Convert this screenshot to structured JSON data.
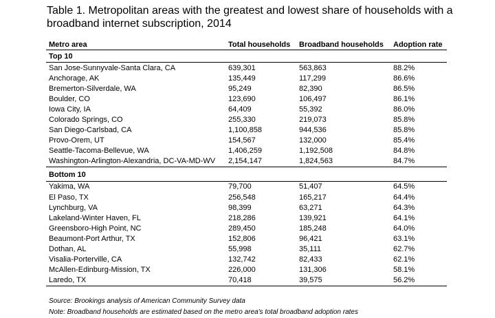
{
  "title": {
    "line1": "Table 1. Metropolitan areas with the greatest and lowest share of households with a",
    "line2": "broadband internet subscription, 2014"
  },
  "columns": [
    "Metro area",
    "Total households",
    "Broadband households",
    "Adoption rate"
  ],
  "groups": [
    {
      "label": "Top 10",
      "rows": [
        [
          "San Jose-Sunnyvale-Santa Clara, CA",
          "639,301",
          "563,863",
          "88.2%"
        ],
        [
          "Anchorage, AK",
          "135,449",
          "117,299",
          "86.6%"
        ],
        [
          "Bremerton-Silverdale, WA",
          "95,249",
          "82,390",
          "86.5%"
        ],
        [
          "Boulder, CO",
          "123,690",
          "106,497",
          "86.1%"
        ],
        [
          "Iowa City, IA",
          "64,409",
          "55,392",
          "86.0%"
        ],
        [
          "Colorado Springs, CO",
          "255,330",
          "219,073",
          "85.8%"
        ],
        [
          "San Diego-Carlsbad, CA",
          "1,100,858",
          "944,536",
          "85.8%"
        ],
        [
          "Provo-Orem, UT",
          "154,567",
          "132,000",
          "85.4%"
        ],
        [
          "Seattle-Tacoma-Bellevue, WA",
          "1,406,259",
          "1,192,508",
          "84.8%"
        ],
        [
          "Washington-Arlington-Alexandria, DC-VA-MD-WV",
          "2,154,147",
          "1,824,563",
          "84.7%"
        ]
      ]
    },
    {
      "label": "Bottom 10",
      "rows": [
        [
          "Yakima, WA",
          "79,700",
          "51,407",
          "64.5%"
        ],
        [
          "El Paso, TX",
          "256,548",
          "165,217",
          "64.4%"
        ],
        [
          "Lynchburg, VA",
          "98,399",
          "63,271",
          "64.3%"
        ],
        [
          "Lakeland-Winter Haven, FL",
          "218,286",
          "139,921",
          "64.1%"
        ],
        [
          "Greensboro-High Point, NC",
          "289,450",
          "185,248",
          "64.0%"
        ],
        [
          "Beaumont-Port Arthur, TX",
          "152,806",
          "96,421",
          "63.1%"
        ],
        [
          "Dothan, AL",
          "55,998",
          "35,111",
          "62.7%"
        ],
        [
          "Visalia-Porterville, CA",
          "132,742",
          "82,433",
          "62.1%"
        ],
        [
          "McAllen-Edinburg-Mission, TX",
          "226,000",
          "131,306",
          "58.1%"
        ],
        [
          "Laredo, TX",
          "70,418",
          "39,575",
          "56.2%"
        ]
      ]
    }
  ],
  "notes": {
    "source": "Source: Brookings analysis of American Community Survey data",
    "note": "Note: Broadband households are estimated based on the metro area's total broadband adoption rates"
  }
}
